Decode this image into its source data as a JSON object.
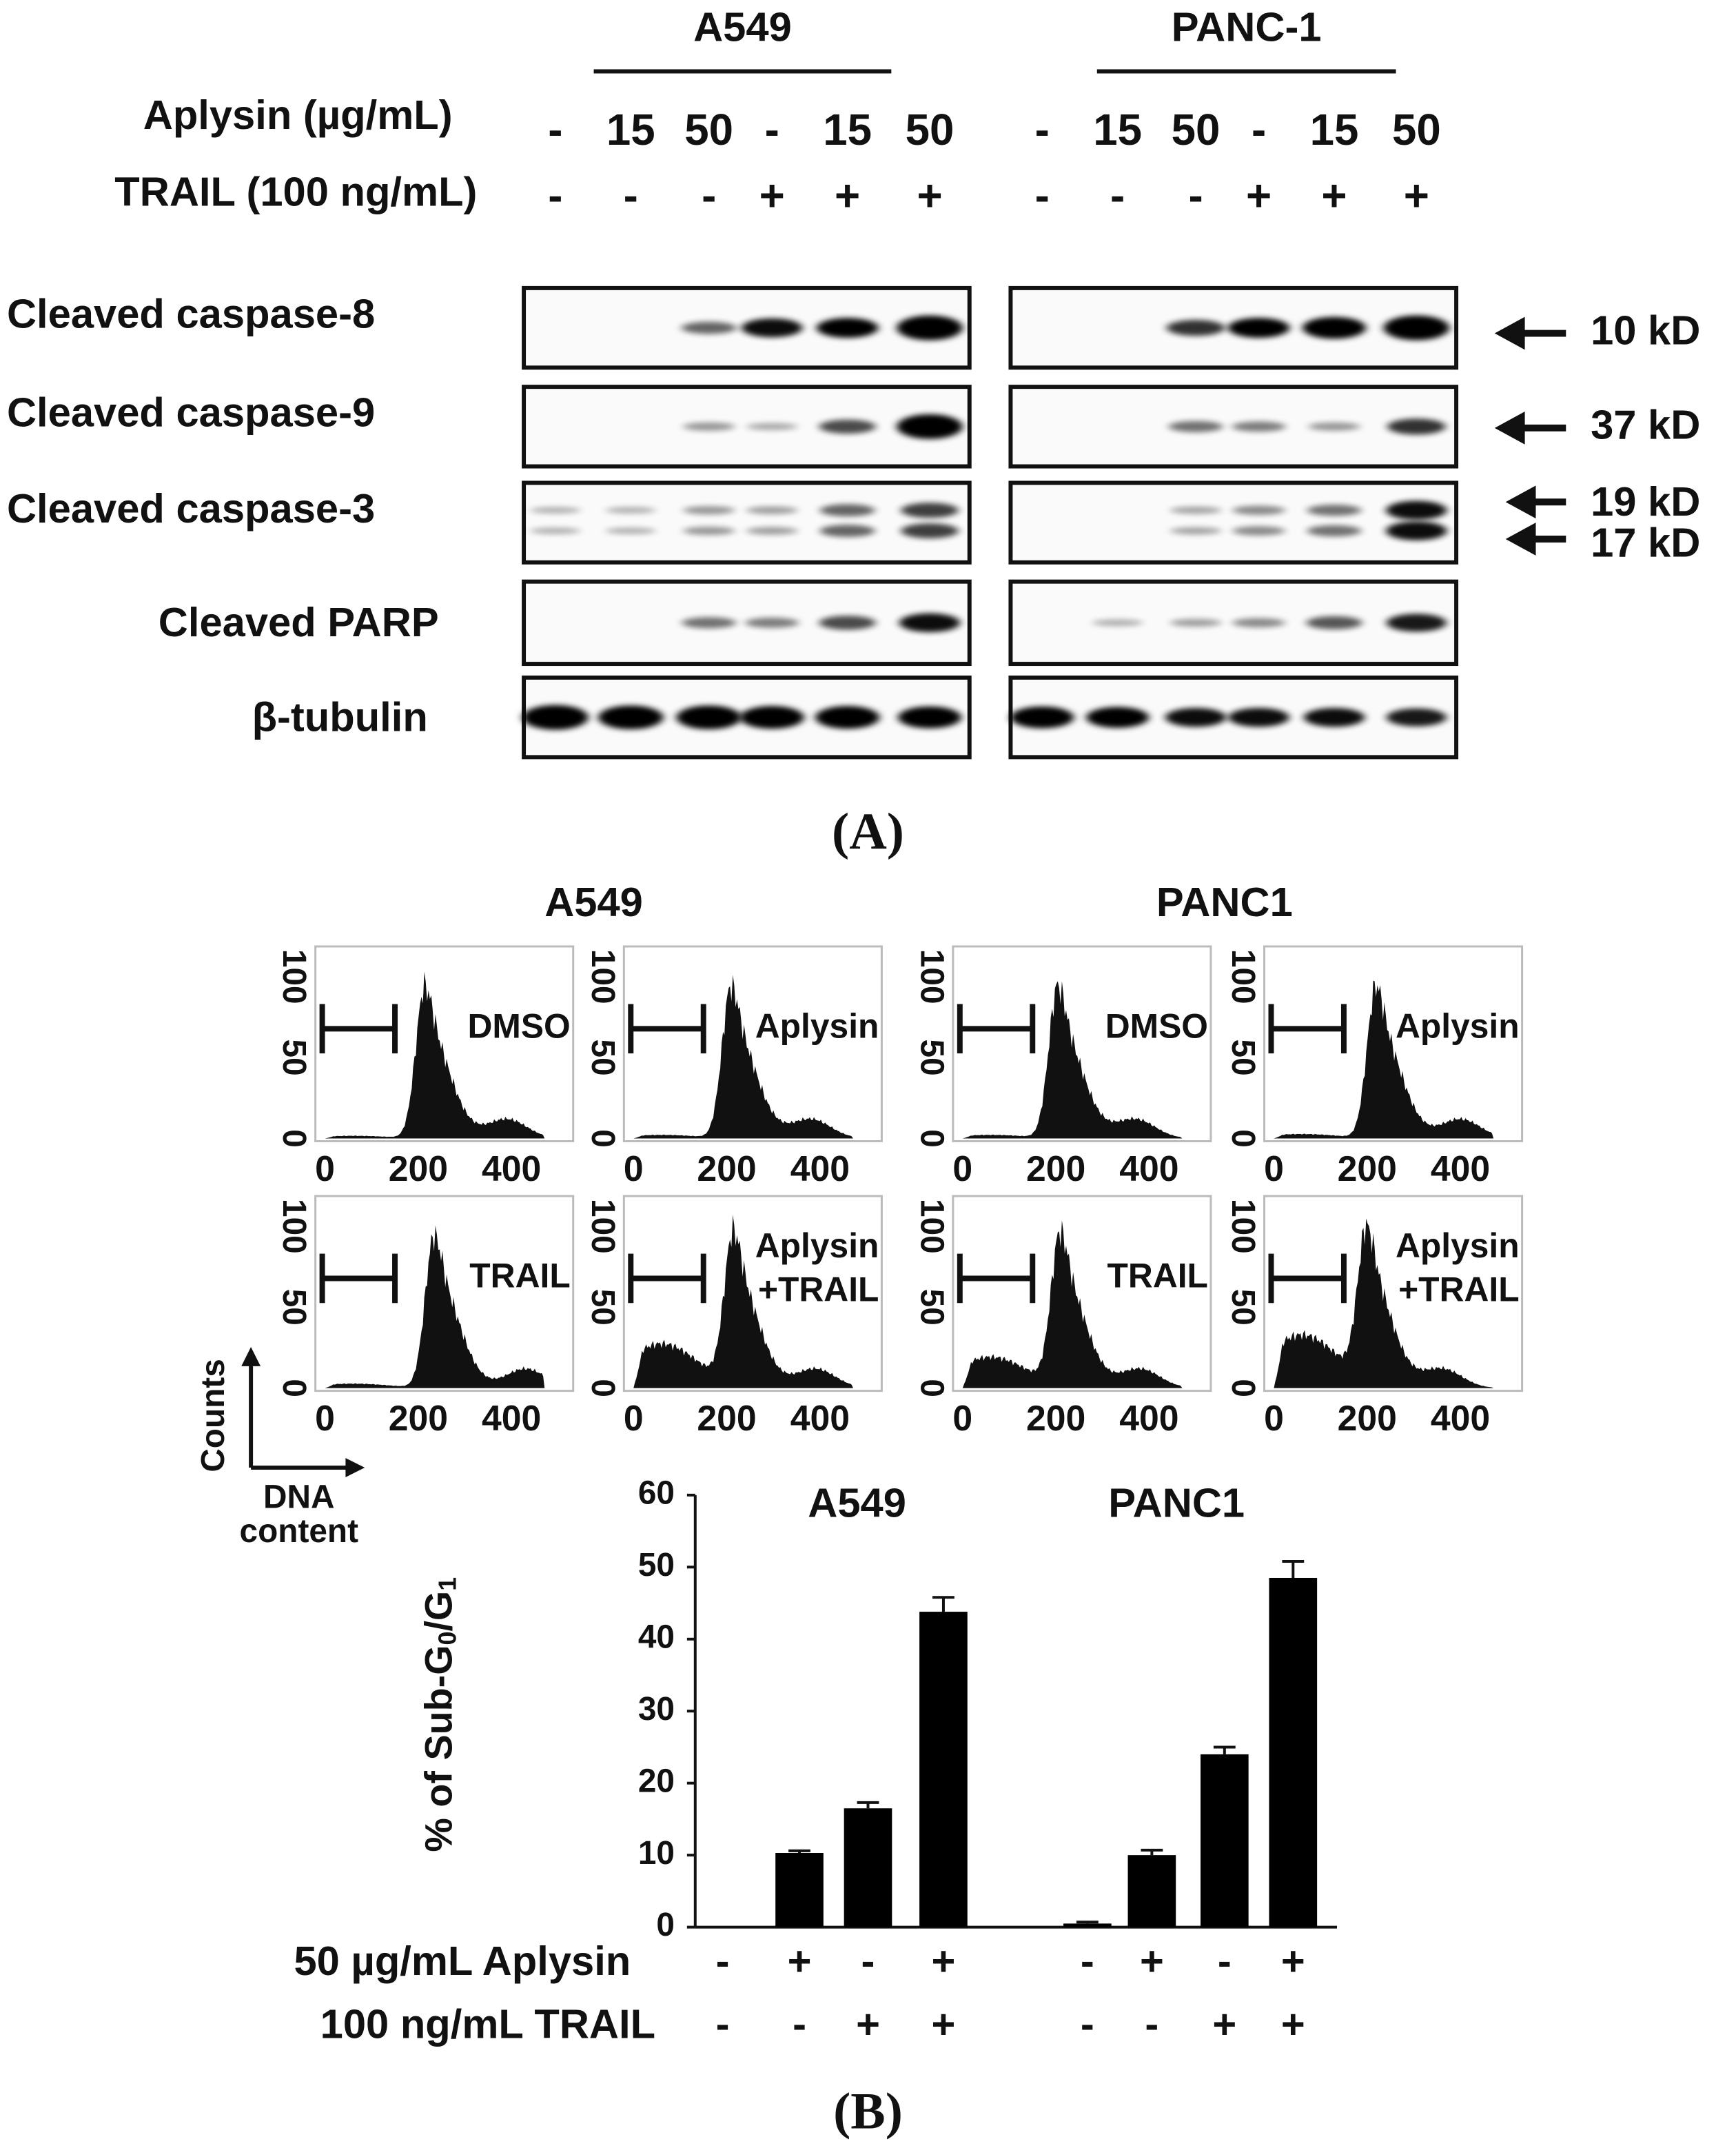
{
  "panel_a": {
    "label": "(A)",
    "cell_lines": [
      "A549",
      "PANC-1"
    ],
    "treatment_rows": [
      {
        "label": "Aplysin (µg/mL)",
        "values": [
          "-",
          "15",
          "50",
          "-",
          "15",
          "50"
        ]
      },
      {
        "label": "TRAIL (100 ng/mL)",
        "values": [
          "-",
          "-",
          "-",
          "+",
          "+",
          "+"
        ]
      }
    ],
    "blots": [
      "Cleaved caspase-8",
      "Cleaved caspase-9",
      "Cleaved caspase-3",
      "Cleaved PARP",
      "β-tubulin"
    ],
    "markers": [
      "10 kD",
      "37 kD",
      "19 kD",
      "17 kD"
    ]
  },
  "panel_b": {
    "label": "(B)",
    "histograms": {
      "cell_lines": [
        "A549",
        "PANC1"
      ],
      "conditions": [
        [
          "DMSO"
        ],
        [
          "Aplysin"
        ],
        [
          "TRAIL"
        ],
        [
          "Aplysin",
          "+TRAIL"
        ]
      ],
      "xticks": [
        0,
        200,
        400
      ],
      "yticks": [
        0,
        50,
        100
      ],
      "ylabel": "Counts",
      "xlabel": [
        "DNA",
        "content"
      ]
    }
  },
  "chart_data": {
    "type": "bar",
    "groups": [
      "A549",
      "PANC1"
    ],
    "ylabel_parts": [
      "% of Sub-G",
      "0",
      "/G",
      "1"
    ],
    "values": [
      0,
      10.3,
      16.5,
      43.8,
      0.5,
      10,
      24,
      48.5
    ],
    "errors": [
      0,
      0.3,
      0.8,
      2,
      0.2,
      0.7,
      1,
      2.3
    ],
    "color": "#000000",
    "ylim": [
      0,
      60
    ],
    "yticks": [
      0,
      10,
      20,
      30,
      40,
      50,
      60
    ],
    "treatment_rows": [
      {
        "label": "50 µg/mL Aplysin",
        "values": [
          "-",
          "+",
          "-",
          "+",
          "-",
          "+",
          "-",
          "+"
        ]
      },
      {
        "label": "100 ng/mL TRAIL",
        "values": [
          "-",
          "-",
          "+",
          "+",
          "-",
          "-",
          "+",
          "+"
        ]
      }
    ]
  }
}
